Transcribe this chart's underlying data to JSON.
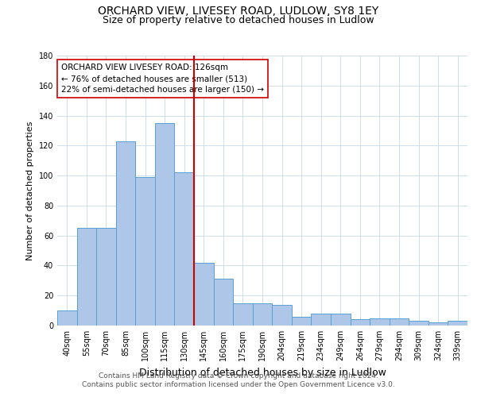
{
  "title1": "ORCHARD VIEW, LIVESEY ROAD, LUDLOW, SY8 1EY",
  "title2": "Size of property relative to detached houses in Ludlow",
  "xlabel": "Distribution of detached houses by size in Ludlow",
  "ylabel": "Number of detached properties",
  "categories": [
    "40sqm",
    "55sqm",
    "70sqm",
    "85sqm",
    "100sqm",
    "115sqm",
    "130sqm",
    "145sqm",
    "160sqm",
    "175sqm",
    "190sqm",
    "204sqm",
    "219sqm",
    "234sqm",
    "249sqm",
    "264sqm",
    "279sqm",
    "294sqm",
    "309sqm",
    "324sqm",
    "339sqm"
  ],
  "values": [
    10,
    65,
    65,
    123,
    99,
    135,
    102,
    42,
    31,
    15,
    15,
    14,
    6,
    8,
    8,
    4,
    5,
    5,
    3,
    2,
    3
  ],
  "bar_color": "#aec6e8",
  "bar_edge_color": "#5a9fd4",
  "line_color": "#cc0000",
  "annotation_line1": "ORCHARD VIEW LIVESEY ROAD: 126sqm",
  "annotation_line2": "← 76% of detached houses are smaller (513)",
  "annotation_line3": "22% of semi-detached houses are larger (150) →",
  "annotation_box_color": "#ffffff",
  "annotation_box_edge_color": "#cc0000",
  "footer1": "Contains HM Land Registry data © Crown copyright and database right 2024.",
  "footer2": "Contains public sector information licensed under the Open Government Licence v3.0.",
  "ylim": [
    0,
    180
  ],
  "yticks": [
    0,
    20,
    40,
    60,
    80,
    100,
    120,
    140,
    160,
    180
  ],
  "title1_fontsize": 10,
  "title2_fontsize": 9,
  "xlabel_fontsize": 9,
  "ylabel_fontsize": 8,
  "tick_fontsize": 7,
  "footer_fontsize": 6.5,
  "annotation_fontsize": 7.5
}
